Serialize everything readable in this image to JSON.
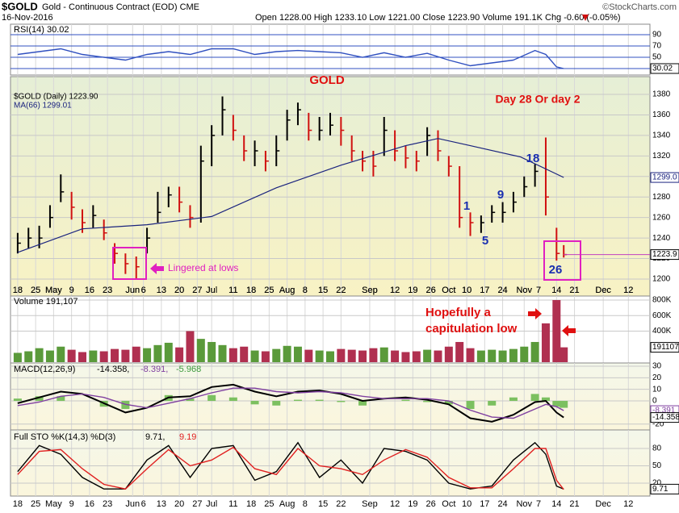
{
  "header": {
    "symbol": "$GOLD",
    "name": "Gold - Continuous Contract (EOD) CME",
    "date": "16-Nov-2016",
    "quote": "Open 1228.00 High 1233.10 Low 1221.00 Close 1223.90 Volume 191.1K Chg -0.60 (-0.05%)",
    "credit": "©StockCharts.com"
  },
  "chart_data": [
    {
      "type": "ohlc",
      "legend": [
        "$GOLD (Daily) 1223.90",
        "MA(66) 1299.01"
      ],
      "annotations": [
        "GOLD",
        "Day 28 Or day 2",
        "1",
        "5",
        "9",
        "18",
        "26",
        "Lingered at lows"
      ],
      "up_color": "#000000",
      "down_color": "#d01010",
      "grid": true,
      "xlim": [
        -1,
        177
      ],
      "xticks": [
        {
          "value": 1,
          "label": "18"
        },
        {
          "value": 6,
          "label": "25"
        },
        {
          "value": 11,
          "label": "May"
        },
        {
          "value": 16,
          "label": "9"
        },
        {
          "value": 21,
          "label": "16"
        },
        {
          "value": 26,
          "label": "23"
        },
        {
          "value": 33,
          "label": "Jun"
        },
        {
          "value": 36,
          "label": "6"
        },
        {
          "value": 41,
          "label": "13"
        },
        {
          "value": 46,
          "label": "20"
        },
        {
          "value": 51,
          "label": "27"
        },
        {
          "value": 55,
          "label": "Jul"
        },
        {
          "value": 61,
          "label": "11"
        },
        {
          "value": 66,
          "label": "18"
        },
        {
          "value": 71,
          "label": "25"
        },
        {
          "value": 76,
          "label": "Aug"
        },
        {
          "value": 81,
          "label": "8"
        },
        {
          "value": 86,
          "label": "15"
        },
        {
          "value": 91,
          "label": "22"
        },
        {
          "value": 99,
          "label": "Sep"
        },
        {
          "value": 106,
          "label": "12"
        },
        {
          "value": 111,
          "label": "19"
        },
        {
          "value": 116,
          "label": "26"
        },
        {
          "value": 121,
          "label": "Oct"
        },
        {
          "value": 126,
          "label": "10"
        },
        {
          "value": 131,
          "label": "17"
        },
        {
          "value": 136,
          "label": "24"
        },
        {
          "value": 142,
          "label": "Nov"
        },
        {
          "value": 146,
          "label": "7"
        },
        {
          "value": 151,
          "label": "14"
        },
        {
          "value": 156,
          "label": "21"
        },
        {
          "value": 164,
          "label": "Dec"
        },
        {
          "value": 171,
          "label": "12"
        }
      ],
      "ylim": [
        1194.5,
        1397.3
      ],
      "yticks": [
        1200,
        1220,
        1240,
        1260,
        1280,
        1300,
        1320,
        1340,
        1360,
        1380
      ],
      "end_labels": [
        {
          "value": 1299.0,
          "label": "1299.0",
          "color": "#1a237e"
        },
        {
          "value": 1223.9,
          "label": "1223.9",
          "color": "#000000"
        }
      ],
      "x": [
        1,
        4,
        7,
        10,
        13,
        16,
        19,
        22,
        25,
        28,
        31,
        34,
        37,
        40,
        43,
        46,
        49,
        52,
        55,
        58,
        61,
        64,
        67,
        70,
        73,
        76,
        79,
        82,
        85,
        88,
        91,
        94,
        97,
        100,
        103,
        106,
        109,
        112,
        115,
        118,
        121,
        124,
        127,
        130,
        133,
        136,
        139,
        142,
        145,
        148,
        151,
        153
      ],
      "high": [
        1245,
        1250,
        1252,
        1272,
        1302,
        1285,
        1268,
        1272,
        1258,
        1235,
        1225,
        1222,
        1250,
        1285,
        1290,
        1290,
        1272,
        1330,
        1350,
        1378,
        1360,
        1340,
        1335,
        1325,
        1340,
        1365,
        1372,
        1362,
        1358,
        1362,
        1358,
        1340,
        1325,
        1325,
        1358,
        1345,
        1330,
        1325,
        1348,
        1345,
        1320,
        1310,
        1265,
        1262,
        1272,
        1275,
        1285,
        1300,
        1312,
        1338,
        1250,
        1233.1
      ],
      "low": [
        1225,
        1230,
        1230,
        1250,
        1275,
        1258,
        1245,
        1250,
        1238,
        1215,
        1205,
        1200,
        1225,
        1255,
        1270,
        1265,
        1250,
        1255,
        1310,
        1340,
        1335,
        1315,
        1310,
        1305,
        1310,
        1335,
        1350,
        1335,
        1335,
        1340,
        1330,
        1315,
        1305,
        1300,
        1320,
        1315,
        1308,
        1305,
        1320,
        1315,
        1300,
        1250,
        1242,
        1245,
        1255,
        1255,
        1265,
        1280,
        1290,
        1262,
        1218,
        1221
      ],
      "close": [
        1235,
        1240,
        1240,
        1260,
        1285,
        1270,
        1255,
        1262,
        1245,
        1225,
        1215,
        1212,
        1240,
        1265,
        1282,
        1275,
        1260,
        1315,
        1340,
        1365,
        1345,
        1325,
        1325,
        1315,
        1325,
        1355,
        1365,
        1345,
        1345,
        1350,
        1345,
        1325,
        1315,
        1310,
        1345,
        1325,
        1318,
        1315,
        1340,
        1325,
        1310,
        1260,
        1255,
        1255,
        1265,
        1265,
        1275,
        1290,
        1305,
        1280,
        1225,
        1223.9
      ],
      "series": [
        {
          "color": "#1a237e",
          "x": [
            1,
            19,
            37,
            55,
            73,
            91,
            109,
            118,
            127,
            141,
            153
          ],
          "values": [
            1226,
            1249,
            1253,
            1261,
            1289,
            1311,
            1330,
            1337,
            1330,
            1319,
            1299.01
          ]
        }
      ]
    },
    {
      "type": "line",
      "legend": [
        "RSI(14) 30.02"
      ],
      "grid": true,
      "xlim": [
        -1,
        177
      ],
      "ylim": [
        20,
        108.6
      ],
      "yticks": [
        90,
        70,
        50,
        30
      ],
      "end_labels": [
        {
          "value": 30.02,
          "label": "30.02",
          "color": "#000000"
        }
      ],
      "x": [
        1,
        7,
        13,
        19,
        25,
        31,
        37,
        43,
        49,
        55,
        61,
        67,
        73,
        79,
        85,
        91,
        97,
        103,
        109,
        115,
        121,
        127,
        133,
        139,
        145,
        148,
        151,
        153
      ],
      "series": [
        {
          "color": "#3050c0",
          "values": [
            55,
            60,
            65,
            55,
            50,
            45,
            55,
            60,
            55,
            65,
            65,
            55,
            60,
            62,
            60,
            58,
            50,
            58,
            50,
            57,
            45,
            35,
            40,
            45,
            62,
            55,
            33,
            30.02
          ]
        }
      ]
    },
    {
      "type": "bar",
      "legend": [
        "Volume 191,107"
      ],
      "annotations": [
        "Hopefully a",
        "capitulation low"
      ],
      "up_color": "#5a9a3a",
      "down_color": "#b03050",
      "grid": true,
      "xlim": [
        -1,
        177
      ],
      "ylim": [
        0,
        852000
      ],
      "yticks": [
        {
          "value": 800000,
          "label": "800K"
        },
        {
          "value": 600000,
          "label": "600K"
        },
        {
          "value": 400000,
          "label": "400K"
        }
      ],
      "end_labels": [
        {
          "value": 191107,
          "label": "191107",
          "color": "#000000"
        }
      ],
      "x": [
        1,
        4,
        7,
        10,
        13,
        16,
        19,
        22,
        25,
        28,
        31,
        34,
        37,
        40,
        43,
        46,
        49,
        52,
        55,
        58,
        61,
        64,
        67,
        70,
        73,
        76,
        79,
        82,
        85,
        88,
        91,
        94,
        97,
        100,
        103,
        106,
        109,
        112,
        115,
        118,
        121,
        124,
        127,
        130,
        133,
        136,
        139,
        142,
        145,
        148,
        151,
        153
      ],
      "values": [
        120000,
        140000,
        180000,
        150000,
        200000,
        160000,
        130000,
        150000,
        140000,
        170000,
        160000,
        200000,
        180000,
        220000,
        250000,
        190000,
        400000,
        300000,
        260000,
        220000,
        180000,
        200000,
        150000,
        140000,
        170000,
        210000,
        200000,
        160000,
        150000,
        140000,
        170000,
        160000,
        150000,
        180000,
        190000,
        150000,
        130000,
        140000,
        160000,
        150000,
        200000,
        260000,
        180000,
        150000,
        160000,
        150000,
        170000,
        200000,
        260000,
        500000,
        800000,
        191107
      ]
    },
    {
      "type": "line",
      "legend": [
        "MACD(12,26,9)",
        "-14.358,",
        "-8.391,",
        "-5.968"
      ],
      "grid": true,
      "xlim": [
        -1,
        177
      ],
      "ylim": [
        -24.4,
        31.4
      ],
      "yticks": [
        30,
        20,
        10,
        0,
        -20
      ],
      "end_labels": [
        {
          "value": -8.391,
          "label": "-8.391",
          "color": "#8040a0"
        },
        {
          "value": -14.358,
          "label": "-14.358",
          "color": "#000000"
        }
      ],
      "x": [
        1,
        7,
        13,
        19,
        25,
        31,
        37,
        43,
        49,
        55,
        61,
        67,
        73,
        79,
        85,
        91,
        97,
        103,
        109,
        115,
        121,
        127,
        133,
        139,
        145,
        148,
        151,
        153
      ],
      "series": [
        {
          "type": "bar",
          "color": "#7cc060",
          "values": [
            2,
            4,
            4,
            0,
            -5,
            -7,
            0,
            5,
            2,
            5,
            3,
            -3,
            -4,
            1,
            1,
            -1,
            -4,
            0,
            1,
            -1,
            -3,
            -7,
            -4,
            3,
            6,
            3,
            -5,
            -5.968
          ]
        },
        {
          "color": "#000000",
          "values": [
            -2,
            3,
            8,
            6,
            -2,
            -10,
            -6,
            3,
            4,
            12,
            14,
            8,
            4,
            8,
            9,
            6,
            0,
            2,
            3,
            1,
            -3,
            -15,
            -18,
            -12,
            -1,
            0,
            -10,
            -14.358
          ]
        },
        {
          "color": "#8040a0",
          "values": [
            -4,
            -1,
            4,
            6,
            3,
            -3,
            -6,
            -2,
            2,
            7,
            11,
            11,
            8,
            7,
            8,
            7,
            4,
            2,
            2,
            2,
            0,
            -8,
            -14,
            -15,
            -7,
            -3,
            -5,
            -8.391
          ]
        }
      ]
    },
    {
      "type": "line",
      "legend": [
        "Full STO %K(14,3) %D(3)",
        "9.71,",
        "9.19"
      ],
      "grid": true,
      "xlim": [
        -1,
        177
      ],
      "ylim": [
        0.5,
        109.3
      ],
      "yticks": [
        80,
        50,
        20
      ],
      "end_labels": [
        {
          "value": 9.71,
          "label": "9.71",
          "color": "#000000"
        }
      ],
      "xticks": [
        {
          "value": 1,
          "label": "18"
        },
        {
          "value": 6,
          "label": "25"
        },
        {
          "value": 11,
          "label": "May"
        },
        {
          "value": 16,
          "label": "9"
        },
        {
          "value": 21,
          "label": "16"
        },
        {
          "value": 26,
          "label": "23"
        },
        {
          "value": 33,
          "label": "Jun"
        },
        {
          "value": 36,
          "label": "6"
        },
        {
          "value": 41,
          "label": "13"
        },
        {
          "value": 46,
          "label": "20"
        },
        {
          "value": 51,
          "label": "27"
        },
        {
          "value": 55,
          "label": "Jul"
        },
        {
          "value": 61,
          "label": "11"
        },
        {
          "value": 66,
          "label": "18"
        },
        {
          "value": 71,
          "label": "25"
        },
        {
          "value": 76,
          "label": "Aug"
        },
        {
          "value": 81,
          "label": "8"
        },
        {
          "value": 86,
          "label": "15"
        },
        {
          "value": 91,
          "label": "22"
        },
        {
          "value": 99,
          "label": "Sep"
        },
        {
          "value": 106,
          "label": "12"
        },
        {
          "value": 111,
          "label": "19"
        },
        {
          "value": 116,
          "label": "26"
        },
        {
          "value": 121,
          "label": "Oct"
        },
        {
          "value": 126,
          "label": "10"
        },
        {
          "value": 131,
          "label": "17"
        },
        {
          "value": 136,
          "label": "24"
        },
        {
          "value": 142,
          "label": "Nov"
        },
        {
          "value": 146,
          "label": "7"
        },
        {
          "value": 151,
          "label": "14"
        },
        {
          "value": 156,
          "label": "21"
        },
        {
          "value": 164,
          "label": "Dec"
        },
        {
          "value": 171,
          "label": "12"
        }
      ],
      "x": [
        1,
        7,
        13,
        19,
        25,
        31,
        37,
        43,
        49,
        55,
        61,
        67,
        73,
        79,
        85,
        91,
        97,
        103,
        109,
        115,
        121,
        127,
        133,
        139,
        145,
        148,
        151,
        153
      ],
      "series": [
        {
          "color": "#000000",
          "values": [
            40,
            85,
            70,
            30,
            10,
            10,
            60,
            85,
            30,
            80,
            85,
            25,
            40,
            90,
            30,
            60,
            20,
            80,
            75,
            60,
            20,
            10,
            15,
            60,
            90,
            70,
            15,
            9.71
          ]
        },
        {
          "color": "#e02020",
          "values": [
            35,
            75,
            78,
            45,
            18,
            10,
            45,
            78,
            50,
            60,
            82,
            45,
            35,
            80,
            50,
            45,
            35,
            60,
            78,
            65,
            30,
            12,
            12,
            45,
            80,
            80,
            25,
            9.19
          ]
        }
      ]
    }
  ]
}
